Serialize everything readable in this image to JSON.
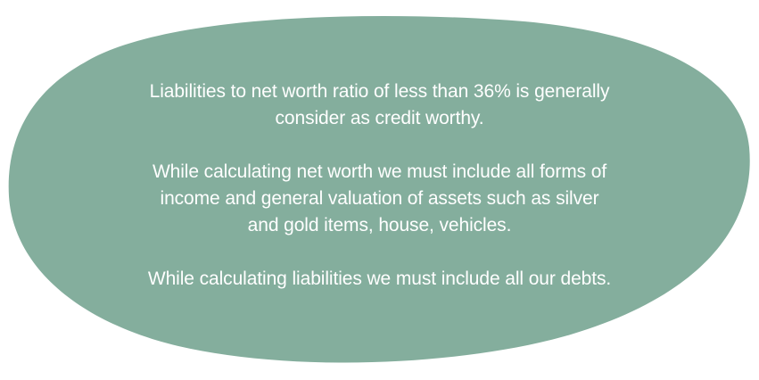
{
  "colors": {
    "blob_fill": "#84AE9D",
    "text": "#FFFFFF",
    "background": "#FFFFFF"
  },
  "content": {
    "paragraph_1": {
      "line_1": "Liabilities to net worth ratio of less than 36% is generally",
      "line_2": "consider as credit worthy."
    },
    "paragraph_2": {
      "line_1": "While calculating net worth we must include all forms of",
      "line_2": "income and general valuation of assets such as silver",
      "line_3": "and gold items, house, vehicles."
    },
    "paragraph_3": {
      "line_1": "While calculating liabilities we must include all our debts."
    }
  }
}
